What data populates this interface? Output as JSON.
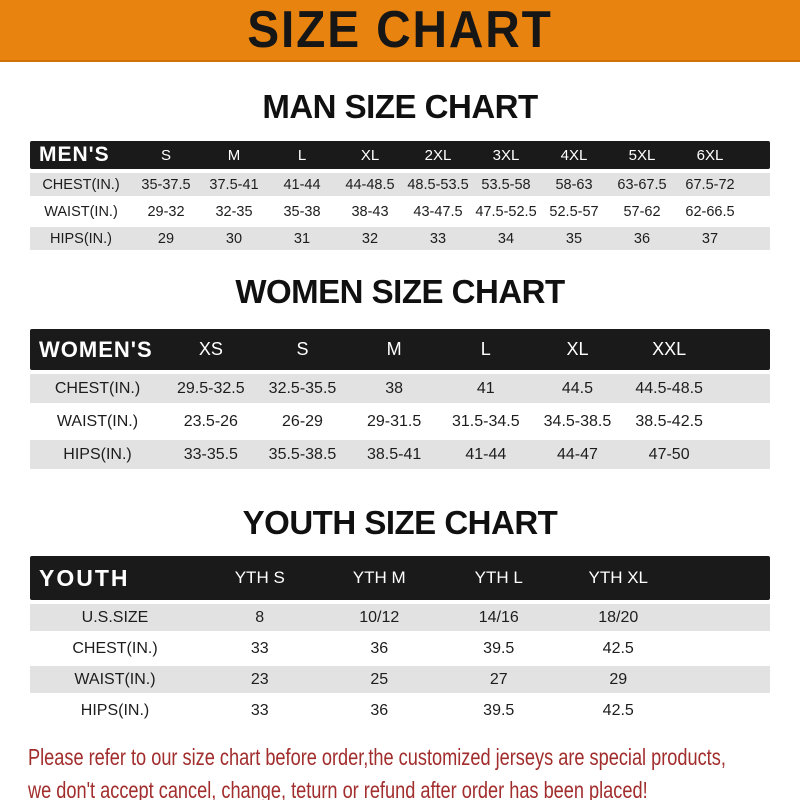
{
  "banner": {
    "title": "SIZE CHART",
    "bg_color": "#E9830F",
    "text_color": "#161616"
  },
  "colors": {
    "header_bar": "#1A1A1A",
    "stripe_row": "#E3E2E2",
    "footer_text": "#A22D2D"
  },
  "sections": [
    {
      "heading": "MAN SIZE CHART",
      "header_label": "MEN'S",
      "columns": [
        "S",
        "M",
        "L",
        "XL",
        "2XL",
        "3XL",
        "4XL",
        "5XL",
        "6XL"
      ],
      "rows": [
        {
          "label": "CHEST(IN.)",
          "values": [
            "35-37.5",
            "37.5-41",
            "41-44",
            "44-48.5",
            "48.5-53.5",
            "53.5-58",
            "58-63",
            "63-67.5",
            "67.5-72"
          ]
        },
        {
          "label": "WAIST(IN.)",
          "values": [
            "29-32",
            "32-35",
            "35-38",
            "38-43",
            "43-47.5",
            "47.5-52.5",
            "52.5-57",
            "57-62",
            "62-66.5"
          ]
        },
        {
          "label": "HIPS(IN.)",
          "values": [
            "29",
            "30",
            "31",
            "32",
            "33",
            "34",
            "35",
            "36",
            "37"
          ]
        }
      ]
    },
    {
      "heading": "WOMEN SIZE CHART",
      "header_label": "WOMEN'S",
      "columns": [
        "XS",
        "S",
        "M",
        "L",
        "XL",
        "XXL"
      ],
      "rows": [
        {
          "label": "CHEST(IN.)",
          "values": [
            "29.5-32.5",
            "32.5-35.5",
            "38",
            "41",
            "44.5",
            "44.5-48.5"
          ]
        },
        {
          "label": "WAIST(IN.)",
          "values": [
            "23.5-26",
            "26-29",
            "29-31.5",
            "31.5-34.5",
            "34.5-38.5",
            "38.5-42.5"
          ]
        },
        {
          "label": "HIPS(IN.)",
          "values": [
            "33-35.5",
            "35.5-38.5",
            "38.5-41",
            "41-44",
            "44-47",
            "47-50"
          ]
        }
      ]
    },
    {
      "heading": "YOUTH SIZE CHART",
      "header_label": "YOUTH",
      "columns": [
        "YTH S",
        "YTH M",
        "YTH L",
        "YTH XL"
      ],
      "rows": [
        {
          "label": "U.S.SIZE",
          "values": [
            "8",
            "10/12",
            "14/16",
            "18/20"
          ]
        },
        {
          "label": "CHEST(IN.)",
          "values": [
            "33",
            "36",
            "39.5",
            "42.5"
          ]
        },
        {
          "label": "WAIST(IN.)",
          "values": [
            "23",
            "25",
            "27",
            "29"
          ]
        },
        {
          "label": "HIPS(IN.)",
          "values": [
            "33",
            "36",
            "39.5",
            "42.5"
          ]
        }
      ]
    }
  ],
  "footer": {
    "line1": "Please refer to our size chart before order,the customized jerseys are special products,",
    "line2": "we don't accept cancel, change, teturn or refund after order has been placed!"
  }
}
